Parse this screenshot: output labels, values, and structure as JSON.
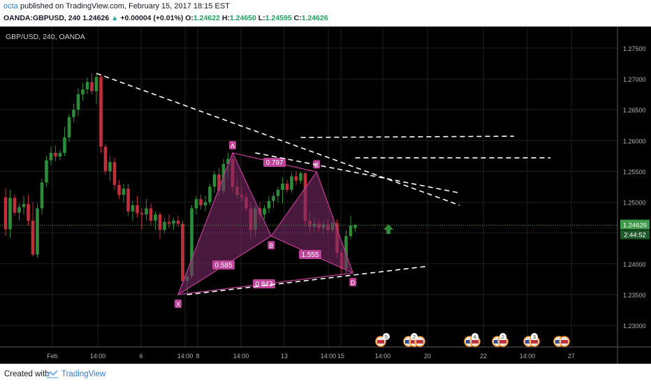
{
  "header": {
    "user": "octa",
    "published": " published on TradingView.com, February 15, 2017 18:15 EST",
    "symbol": "OANDA:GBPUSD, 240",
    "last": "1.24626",
    "change_arrow": "▲",
    "change": "+0.00004 (+0.01%)",
    "o_label": "O:",
    "o": "1.24622",
    "h_label": "H:",
    "h": "1.24650",
    "l_label": "L:",
    "l": "1.24595",
    "c_label": "C:",
    "c": "1.24626"
  },
  "footer": {
    "created_with": "Created with",
    "brand": "TradingView"
  },
  "colors": {
    "background": "#000000",
    "grid": "#1f1f1f",
    "up_candle": "#2e8b3a",
    "down_candle": "#c0303c",
    "pattern": "#b83a8e",
    "pattern_fill": "#7a2a66",
    "trendline": "#ffffff",
    "price_label": "#3c9a4a"
  },
  "chart_data": {
    "type": "candlestick",
    "instrument_label": "GBP/USD, 240, OANDA",
    "current_price_label": "1.24626",
    "countdown_label": "2:44:52",
    "current_price": 1.24626,
    "y_range": [
      1.2265,
      1.2785
    ],
    "y_ticks": [
      "1.23000",
      "1.23500",
      "1.24000",
      "1.24500",
      "1.25000",
      "1.25500",
      "1.26000",
      "1.26500",
      "1.27000",
      "1.27500"
    ],
    "y_tick_values": [
      1.23,
      1.235,
      1.24,
      1.245,
      1.25,
      1.255,
      1.26,
      1.265,
      1.27,
      1.275
    ],
    "x_ticks": [
      "Feb",
      "14:00",
      "6",
      "14:00",
      "8",
      "14:00",
      "13",
      "14:00",
      "15",
      "14:00",
      "20",
      "22",
      "14:00",
      "27"
    ],
    "candles": [
      {
        "o": 1.2508,
        "h": 1.2523,
        "l": 1.2445,
        "c": 1.2456
      },
      {
        "o": 1.2456,
        "h": 1.252,
        "l": 1.2442,
        "c": 1.2507
      },
      {
        "o": 1.2507,
        "h": 1.2512,
        "l": 1.2478,
        "c": 1.2483
      },
      {
        "o": 1.2483,
        "h": 1.2498,
        "l": 1.247,
        "c": 1.2492
      },
      {
        "o": 1.2492,
        "h": 1.251,
        "l": 1.248,
        "c": 1.2497
      },
      {
        "o": 1.2497,
        "h": 1.2512,
        "l": 1.2462,
        "c": 1.247
      },
      {
        "o": 1.247,
        "h": 1.25,
        "l": 1.2412,
        "c": 1.2415
      },
      {
        "o": 1.2415,
        "h": 1.2498,
        "l": 1.241,
        "c": 1.249
      },
      {
        "o": 1.249,
        "h": 1.2538,
        "l": 1.248,
        "c": 1.2532
      },
      {
        "o": 1.2532,
        "h": 1.2575,
        "l": 1.2525,
        "c": 1.2568
      },
      {
        "o": 1.2568,
        "h": 1.259,
        "l": 1.256,
        "c": 1.258
      },
      {
        "o": 1.258,
        "h": 1.2592,
        "l": 1.2566,
        "c": 1.2574
      },
      {
        "o": 1.2574,
        "h": 1.2585,
        "l": 1.2568,
        "c": 1.258
      },
      {
        "o": 1.258,
        "h": 1.2622,
        "l": 1.2575,
        "c": 1.2605
      },
      {
        "o": 1.2605,
        "h": 1.2643,
        "l": 1.2598,
        "c": 1.2638
      },
      {
        "o": 1.2638,
        "h": 1.266,
        "l": 1.263,
        "c": 1.265
      },
      {
        "o": 1.265,
        "h": 1.2685,
        "l": 1.264,
        "c": 1.2675
      },
      {
        "o": 1.2675,
        "h": 1.2693,
        "l": 1.2665,
        "c": 1.2683
      },
      {
        "o": 1.2683,
        "h": 1.2702,
        "l": 1.2675,
        "c": 1.2695
      },
      {
        "o": 1.2695,
        "h": 1.2709,
        "l": 1.2675,
        "c": 1.268
      },
      {
        "o": 1.268,
        "h": 1.2708,
        "l": 1.266,
        "c": 1.2703
      },
      {
        "o": 1.2703,
        "h": 1.2708,
        "l": 1.258,
        "c": 1.259
      },
      {
        "o": 1.259,
        "h": 1.2595,
        "l": 1.2545,
        "c": 1.255
      },
      {
        "o": 1.255,
        "h": 1.2575,
        "l": 1.2535,
        "c": 1.2565
      },
      {
        "o": 1.2565,
        "h": 1.2572,
        "l": 1.252,
        "c": 1.2528
      },
      {
        "o": 1.2528,
        "h": 1.2535,
        "l": 1.2505,
        "c": 1.2512
      },
      {
        "o": 1.2512,
        "h": 1.253,
        "l": 1.25,
        "c": 1.2522
      },
      {
        "o": 1.2522,
        "h": 1.253,
        "l": 1.2478,
        "c": 1.2485
      },
      {
        "o": 1.2485,
        "h": 1.2502,
        "l": 1.247,
        "c": 1.2495
      },
      {
        "o": 1.2495,
        "h": 1.251,
        "l": 1.2475,
        "c": 1.2482
      },
      {
        "o": 1.2482,
        "h": 1.249,
        "l": 1.2455,
        "c": 1.248
      },
      {
        "o": 1.248,
        "h": 1.2505,
        "l": 1.247,
        "c": 1.249
      },
      {
        "o": 1.249,
        "h": 1.2498,
        "l": 1.2462,
        "c": 1.247
      },
      {
        "o": 1.247,
        "h": 1.2485,
        "l": 1.2455,
        "c": 1.248
      },
      {
        "o": 1.248,
        "h": 1.2484,
        "l": 1.244,
        "c": 1.2455
      },
      {
        "o": 1.2455,
        "h": 1.2475,
        "l": 1.245,
        "c": 1.2468
      },
      {
        "o": 1.2468,
        "h": 1.248,
        "l": 1.2458,
        "c": 1.2465
      },
      {
        "o": 1.2465,
        "h": 1.2475,
        "l": 1.2455,
        "c": 1.247
      },
      {
        "o": 1.247,
        "h": 1.2478,
        "l": 1.246,
        "c": 1.2465
      },
      {
        "o": 1.2465,
        "h": 1.247,
        "l": 1.2365,
        "c": 1.2372
      },
      {
        "o": 1.2372,
        "h": 1.239,
        "l": 1.235,
        "c": 1.238
      },
      {
        "o": 1.238,
        "h": 1.2495,
        "l": 1.2375,
        "c": 1.249
      },
      {
        "o": 1.249,
        "h": 1.251,
        "l": 1.248,
        "c": 1.2505
      },
      {
        "o": 1.2505,
        "h": 1.2512,
        "l": 1.2488,
        "c": 1.2495
      },
      {
        "o": 1.2495,
        "h": 1.251,
        "l": 1.2485,
        "c": 1.25
      },
      {
        "o": 1.25,
        "h": 1.253,
        "l": 1.2495,
        "c": 1.2525
      },
      {
        "o": 1.2525,
        "h": 1.255,
        "l": 1.2515,
        "c": 1.2545
      },
      {
        "o": 1.2545,
        "h": 1.2555,
        "l": 1.251,
        "c": 1.2518
      },
      {
        "o": 1.2518,
        "h": 1.257,
        "l": 1.2512,
        "c": 1.2562
      },
      {
        "o": 1.2562,
        "h": 1.258,
        "l": 1.254,
        "c": 1.257
      },
      {
        "o": 1.257,
        "h": 1.2575,
        "l": 1.2515,
        "c": 1.2525
      },
      {
        "o": 1.2525,
        "h": 1.254,
        "l": 1.2505,
        "c": 1.2512
      },
      {
        "o": 1.2512,
        "h": 1.2525,
        "l": 1.25,
        "c": 1.2508
      },
      {
        "o": 1.2508,
        "h": 1.2515,
        "l": 1.2485,
        "c": 1.249
      },
      {
        "o": 1.249,
        "h": 1.25,
        "l": 1.244,
        "c": 1.2455
      },
      {
        "o": 1.2455,
        "h": 1.2495,
        "l": 1.2445,
        "c": 1.249
      },
      {
        "o": 1.249,
        "h": 1.25,
        "l": 1.247,
        "c": 1.248
      },
      {
        "o": 1.248,
        "h": 1.2495,
        "l": 1.2472,
        "c": 1.249
      },
      {
        "o": 1.249,
        "h": 1.251,
        "l": 1.2482,
        "c": 1.2502
      },
      {
        "o": 1.2502,
        "h": 1.2515,
        "l": 1.249,
        "c": 1.251
      },
      {
        "o": 1.251,
        "h": 1.2525,
        "l": 1.25,
        "c": 1.252
      },
      {
        "o": 1.252,
        "h": 1.254,
        "l": 1.2498,
        "c": 1.253
      },
      {
        "o": 1.253,
        "h": 1.2536,
        "l": 1.2515,
        "c": 1.252
      },
      {
        "o": 1.252,
        "h": 1.2548,
        "l": 1.2515,
        "c": 1.2542
      },
      {
        "o": 1.2542,
        "h": 1.2551,
        "l": 1.2528,
        "c": 1.2535
      },
      {
        "o": 1.2535,
        "h": 1.255,
        "l": 1.253,
        "c": 1.2547
      },
      {
        "o": 1.2547,
        "h": 1.2549,
        "l": 1.246,
        "c": 1.247
      },
      {
        "o": 1.247,
        "h": 1.2485,
        "l": 1.2448,
        "c": 1.246
      },
      {
        "o": 1.246,
        "h": 1.2475,
        "l": 1.245,
        "c": 1.2465
      },
      {
        "o": 1.2465,
        "h": 1.2472,
        "l": 1.2452,
        "c": 1.2458
      },
      {
        "o": 1.2458,
        "h": 1.247,
        "l": 1.2448,
        "c": 1.2464
      },
      {
        "o": 1.2464,
        "h": 1.2472,
        "l": 1.245,
        "c": 1.2455
      },
      {
        "o": 1.2455,
        "h": 1.247,
        "l": 1.245,
        "c": 1.2466
      },
      {
        "o": 1.2466,
        "h": 1.2472,
        "l": 1.241,
        "c": 1.2418
      },
      {
        "o": 1.2418,
        "h": 1.2425,
        "l": 1.2382,
        "c": 1.2392
      },
      {
        "o": 1.2392,
        "h": 1.2455,
        "l": 1.2385,
        "c": 1.2445
      },
      {
        "o": 1.2445,
        "h": 1.2478,
        "l": 1.244,
        "c": 1.2462
      },
      {
        "o": 1.2458,
        "h": 1.2465,
        "l": 1.2452,
        "c": 1.2463
      }
    ],
    "harmonic_pattern": {
      "points": [
        {
          "label": "X",
          "value": 1.235
        },
        {
          "label": "A",
          "value": 1.258
        },
        {
          "label": "B",
          "value": 1.2445
        },
        {
          "label": "C",
          "value": 1.2549
        },
        {
          "label": "D",
          "value": 1.2385
        }
      ],
      "ratios": [
        {
          "label": "0.797"
        },
        {
          "label": "0.585"
        },
        {
          "label": "1.555"
        },
        {
          "label": "0.843"
        }
      ]
    },
    "trendlines": [
      {
        "from": [
          20,
          1.2709
        ],
        "to": [
          100,
          1.2495
        ]
      },
      {
        "from": [
          55,
          1.258
        ],
        "to": [
          100,
          1.2515
        ]
      },
      {
        "from": [
          40,
          1.235
        ],
        "to": [
          93,
          1.2396
        ]
      }
    ],
    "horizontal_levels": [
      {
        "from": [
          65,
          1.2605
        ],
        "to": [
          112,
          1.2607
        ]
      },
      {
        "from": [
          77,
          1.2572
        ],
        "to": [
          120,
          1.2572
        ]
      }
    ],
    "event_markers": [
      {
        "flags": [
          "us"
        ],
        "badge": "5"
      },
      {
        "flags": [
          "gb",
          "us",
          "us"
        ],
        "badge": "2"
      },
      {
        "flags": [
          "gb",
          "us"
        ],
        "badge": "4"
      },
      {
        "flags": [
          "gb",
          "us"
        ],
        "badge": "2"
      },
      {
        "flags": [
          "gb",
          "us"
        ],
        "badge": "3"
      },
      {
        "flags": [
          "gb",
          "us"
        ],
        "badge": ""
      }
    ]
  }
}
